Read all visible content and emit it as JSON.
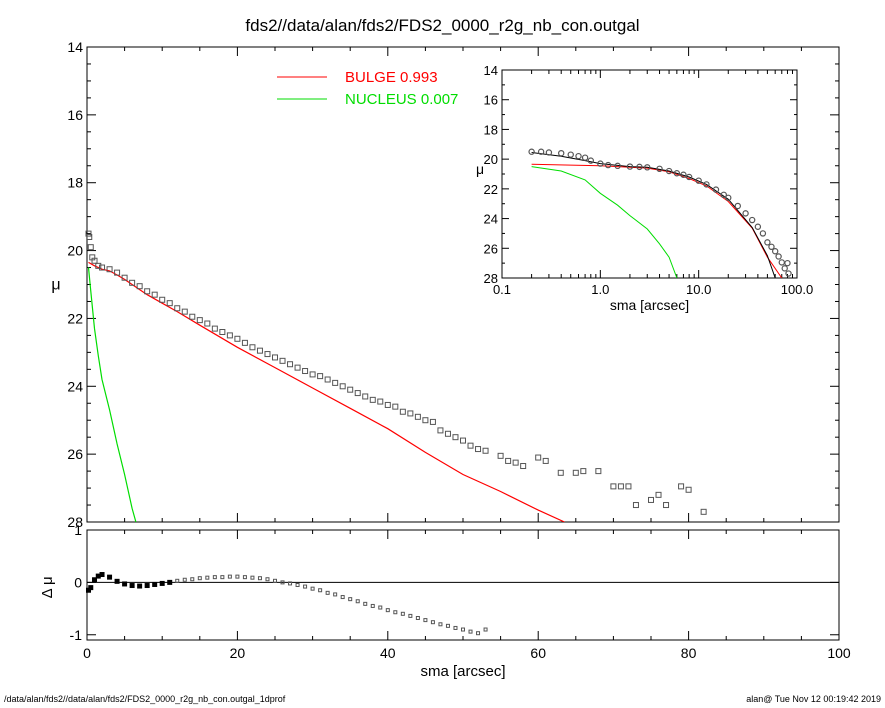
{
  "title": "fds2//data/alan/fds2/FDS2_0000_r2g_nb_con.outgal",
  "footer_left": "/data/alan/fds2//data/alan/fds2/FDS2_0000_r2g_nb_con.outgal_1dprof",
  "footer_right": "alan@  Tue Nov 12 00:19:42 2019",
  "colors": {
    "bulge": "#ff0000",
    "nucleus": "#00dd00",
    "data": "#555555",
    "model": "#000000"
  },
  "chart_data": [
    {
      "type": "scatter",
      "name": "main-profile",
      "xlabel": "sma [arcsec]",
      "ylabel": "μ",
      "xlim": [
        0,
        100
      ],
      "ylim": [
        28,
        14
      ],
      "xticks": [
        "0",
        "20",
        "40",
        "60",
        "80",
        "100"
      ],
      "yticks": [
        "14",
        "16",
        "18",
        "20",
        "22",
        "24",
        "26",
        "28"
      ],
      "legend": [
        {
          "label": "BULGE  0.993",
          "color": "#ff0000"
        },
        {
          "label": "NUCLEUS  0.007",
          "color": "#00dd00"
        }
      ],
      "series": [
        {
          "name": "BULGE",
          "kind": "line",
          "color": "#ff0000",
          "x": [
            0.2,
            1,
            2,
            3,
            4,
            5,
            6,
            8,
            10,
            12,
            15,
            20,
            25,
            30,
            35,
            40,
            45,
            50,
            55,
            60,
            63.5
          ],
          "y": [
            20.35,
            20.45,
            20.55,
            20.6,
            20.72,
            20.85,
            21.0,
            21.3,
            21.55,
            21.8,
            22.2,
            22.85,
            23.45,
            24.05,
            24.65,
            25.25,
            25.95,
            26.6,
            27.1,
            27.65,
            28.0
          ]
        },
        {
          "name": "NUCLEUS",
          "kind": "line",
          "color": "#00dd00",
          "x": [
            0.2,
            0.5,
            1,
            1.5,
            2,
            3,
            4,
            5,
            6,
            6.5
          ],
          "y": [
            20.5,
            21.2,
            22.3,
            23.1,
            23.8,
            24.7,
            25.7,
            26.6,
            27.6,
            28.0
          ]
        },
        {
          "name": "data",
          "kind": "points",
          "color": "#555555",
          "x": [
            0.2,
            0.3,
            0.5,
            0.7,
            1,
            1.5,
            2,
            3,
            4,
            5,
            6,
            7,
            8,
            9,
            10,
            11,
            12,
            13,
            14,
            15,
            16,
            17,
            18,
            19,
            20,
            21,
            22,
            23,
            24,
            25,
            26,
            27,
            28,
            29,
            30,
            31,
            32,
            33,
            34,
            35,
            36,
            37,
            38,
            39,
            40,
            41,
            42,
            43,
            44,
            45,
            46,
            47,
            48,
            49,
            50,
            51,
            52,
            53,
            55,
            56,
            57,
            58,
            60,
            61,
            63,
            65,
            66,
            68,
            70,
            71,
            72,
            73,
            75,
            76,
            77,
            79,
            80,
            82
          ],
          "y": [
            19.5,
            19.6,
            19.9,
            20.2,
            20.3,
            20.45,
            20.5,
            20.55,
            20.65,
            20.8,
            20.95,
            21.05,
            21.2,
            21.3,
            21.45,
            21.55,
            21.7,
            21.8,
            21.95,
            22.05,
            22.15,
            22.3,
            22.4,
            22.5,
            22.6,
            22.72,
            22.85,
            22.95,
            23.05,
            23.15,
            23.25,
            23.35,
            23.45,
            23.55,
            23.65,
            23.7,
            23.8,
            23.9,
            24.0,
            24.1,
            24.2,
            24.3,
            24.4,
            24.45,
            24.55,
            24.6,
            24.75,
            24.8,
            24.9,
            25.0,
            25.05,
            25.3,
            25.4,
            25.5,
            25.6,
            25.75,
            25.85,
            25.9,
            26.05,
            26.2,
            26.25,
            26.35,
            26.1,
            26.2,
            26.55,
            26.55,
            26.5,
            26.5,
            26.95,
            26.95,
            26.95,
            27.5,
            27.35,
            27.2,
            27.5,
            26.95,
            27.05,
            27.7
          ]
        }
      ]
    },
    {
      "type": "scatter",
      "name": "residuals",
      "xlabel": "sma [arcsec]",
      "ylabel": "Δ μ",
      "xlim": [
        0,
        100
      ],
      "ylim": [
        -1.1,
        1.0
      ],
      "yticks": [
        "1",
        "0",
        "-1"
      ],
      "zero_line": true,
      "series": [
        {
          "name": "residual",
          "kind": "points",
          "color": "#555555",
          "x": [
            0.2,
            0.5,
            1,
            1.5,
            2,
            3,
            4,
            5,
            6,
            7,
            8,
            9,
            10,
            11,
            12,
            13,
            14,
            15,
            16,
            17,
            18,
            19,
            20,
            21,
            22,
            23,
            24,
            25,
            26,
            27,
            28,
            29,
            30,
            31,
            32,
            33,
            34,
            35,
            36,
            37,
            38,
            39,
            40,
            41,
            42,
            43,
            44,
            45,
            46,
            47,
            48,
            49,
            50,
            51,
            52,
            53
          ],
          "y": [
            -0.15,
            -0.1,
            0.05,
            0.12,
            0.15,
            0.1,
            0.02,
            -0.03,
            -0.06,
            -0.07,
            -0.06,
            -0.04,
            -0.02,
            0.0,
            0.03,
            0.05,
            0.06,
            0.08,
            0.09,
            0.1,
            0.1,
            0.11,
            0.11,
            0.1,
            0.09,
            0.08,
            0.06,
            0.03,
            0.0,
            -0.02,
            -0.05,
            -0.08,
            -0.12,
            -0.15,
            -0.2,
            -0.23,
            -0.28,
            -0.32,
            -0.36,
            -0.41,
            -0.45,
            -0.48,
            -0.53,
            -0.57,
            -0.6,
            -0.64,
            -0.68,
            -0.72,
            -0.76,
            -0.8,
            -0.83,
            -0.87,
            -0.9,
            -0.94,
            -0.97,
            -0.9
          ]
        }
      ]
    },
    {
      "type": "line",
      "name": "inset-log-profile",
      "xlabel": "sma [arcsec]",
      "ylabel": "μ",
      "xscale": "log",
      "xlim": [
        0.1,
        100
      ],
      "ylim": [
        28,
        14
      ],
      "xticks": [
        "0.1",
        "1.0",
        "10.0",
        "100.0"
      ],
      "yticks": [
        "14",
        "16",
        "18",
        "20",
        "22",
        "24",
        "26",
        "28"
      ],
      "series": [
        {
          "name": "BULGE",
          "kind": "line",
          "color": "#ff0000",
          "x": [
            0.2,
            0.5,
            1,
            2,
            3,
            5,
            8,
            12,
            20,
            35,
            50,
            70
          ],
          "y": [
            20.35,
            20.4,
            20.45,
            20.55,
            20.6,
            20.85,
            21.3,
            21.8,
            22.85,
            24.65,
            26.6,
            28.0
          ]
        },
        {
          "name": "NUCLEUS",
          "kind": "line",
          "color": "#00dd00",
          "x": [
            0.2,
            0.4,
            0.7,
            1,
            1.5,
            2,
            3,
            4,
            5,
            6
          ],
          "y": [
            20.5,
            20.8,
            21.4,
            22.3,
            23.1,
            23.8,
            24.7,
            25.7,
            26.6,
            28.0
          ]
        },
        {
          "name": "model",
          "kind": "line",
          "color": "#000000",
          "x": [
            0.2,
            0.4,
            0.7,
            1,
            2,
            3,
            5,
            8,
            12,
            20,
            35,
            50,
            60
          ],
          "y": [
            19.55,
            19.8,
            20.1,
            20.3,
            20.5,
            20.55,
            20.8,
            21.2,
            21.7,
            22.7,
            24.6,
            26.5,
            28.0
          ]
        },
        {
          "name": "data",
          "kind": "points",
          "color": "#555555",
          "x": [
            0.2,
            0.25,
            0.3,
            0.4,
            0.5,
            0.6,
            0.7,
            0.8,
            1,
            1.2,
            1.5,
            2,
            2.5,
            3,
            4,
            5,
            6,
            7,
            8,
            10,
            12,
            15,
            18,
            20,
            25,
            30,
            35,
            40,
            45,
            50,
            55,
            60,
            65,
            70,
            75,
            80,
            82
          ],
          "y": [
            19.5,
            19.5,
            19.55,
            19.6,
            19.7,
            19.8,
            19.9,
            20.1,
            20.3,
            20.4,
            20.45,
            20.5,
            20.52,
            20.55,
            20.65,
            20.8,
            20.95,
            21.05,
            21.2,
            21.45,
            21.7,
            22.05,
            22.4,
            22.6,
            23.15,
            23.65,
            24.1,
            24.55,
            25.0,
            25.6,
            25.9,
            26.2,
            26.55,
            26.95,
            27.35,
            27.0,
            27.7
          ]
        }
      ]
    }
  ]
}
